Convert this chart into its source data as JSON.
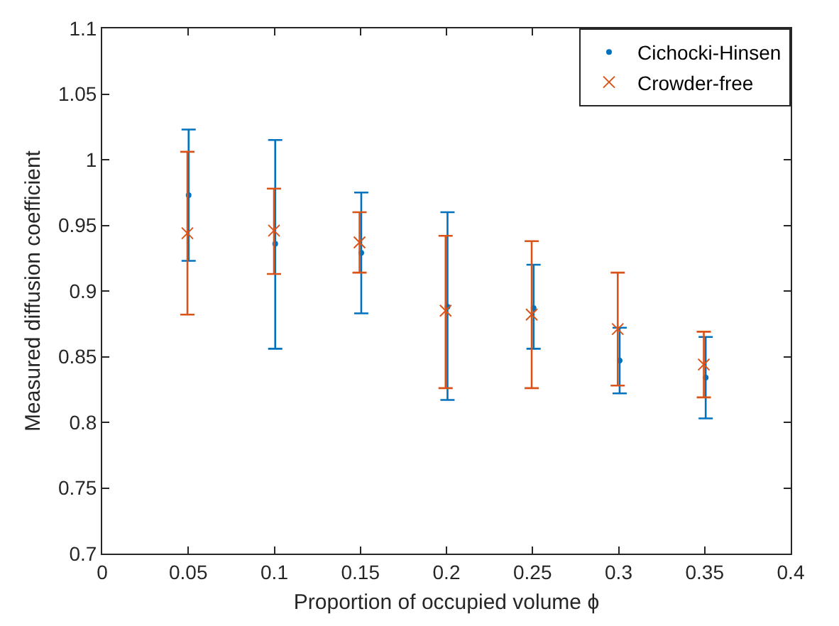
{
  "chart_data": {
    "type": "scatter",
    "xlabel": "Proportion of occupied volume ϕ",
    "ylabel": "Measured diffusion coefficient",
    "xlim": [
      0,
      0.4
    ],
    "xticks": [
      0,
      0.05,
      0.1,
      0.15,
      0.2,
      0.25,
      0.3,
      0.35,
      0.4
    ],
    "ylim": [
      0.7,
      1.1
    ],
    "yticks": [
      0.7,
      0.75,
      0.8,
      0.85,
      0.9,
      0.95,
      1,
      1.05,
      1.1
    ],
    "grid": false,
    "legend": "top right",
    "series": [
      {
        "name": "Cichocki-Hinsen",
        "color": "#0072bd",
        "marker": "circle",
        "x": [
          0.0502,
          0.1005,
          0.1505,
          0.2006,
          0.2506,
          0.3006,
          0.3506
        ],
        "values": [
          0.973,
          0.936,
          0.929,
          0.888,
          0.887,
          0.847,
          0.834
        ],
        "errors": [
          [
            0.923,
            1.023
          ],
          [
            0.856,
            1.015
          ],
          [
            0.883,
            0.975
          ],
          [
            0.817,
            0.96
          ],
          [
            0.856,
            0.92
          ],
          [
            0.822,
            0.872
          ],
          [
            0.803,
            0.865
          ]
        ]
      },
      {
        "name": "Crowder-free",
        "color": "#d95319",
        "marker": "cross",
        "x": [
          0.0495,
          0.0998,
          0.1495,
          0.1995,
          0.2495,
          0.2995,
          0.3495
        ],
        "values": [
          0.944,
          0.946,
          0.937,
          0.885,
          0.882,
          0.871,
          0.844
        ],
        "errors": [
          [
            0.882,
            1.006
          ],
          [
            0.913,
            0.978
          ],
          [
            0.914,
            0.96
          ],
          [
            0.826,
            0.942
          ],
          [
            0.826,
            0.938
          ],
          [
            0.828,
            0.914
          ],
          [
            0.819,
            0.869
          ]
        ]
      }
    ]
  }
}
